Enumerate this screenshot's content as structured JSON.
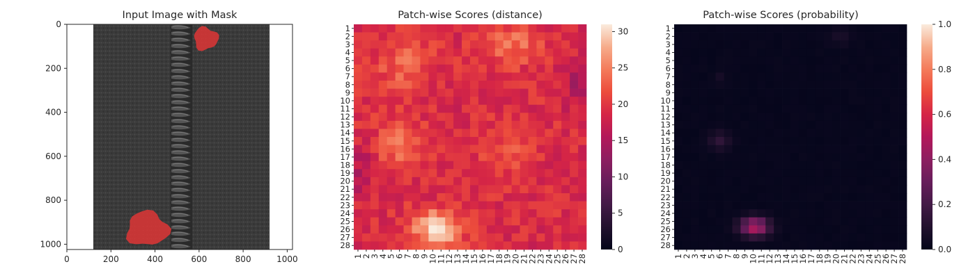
{
  "chart_data": [
    {
      "type": "image",
      "title": "Input Image with Mask",
      "xlim": [
        0,
        1024
      ],
      "ylim": [
        1024,
        0
      ],
      "xticks": [
        0,
        200,
        400,
        600,
        800,
        1000
      ],
      "yticks": [
        0,
        200,
        400,
        600,
        800,
        1000
      ],
      "image": {
        "extent_x": [
          120,
          920
        ],
        "zipper_x": [
          470,
          570
        ],
        "mask_regions": [
          {
            "name": "defect-top",
            "cx": 630,
            "cy": 65,
            "rx": 55,
            "ry": 52
          },
          {
            "name": "defect-bottom",
            "cx": 365,
            "cy": 930,
            "rx": 95,
            "ry": 78
          }
        ],
        "colors": {
          "fabric": "#3a3a3a",
          "zipper": "#2b2b2b",
          "mask": "#d93535"
        }
      }
    },
    {
      "type": "heatmap",
      "title": "Patch-wise Scores (distance)",
      "rows": 28,
      "cols": 28,
      "tick_labels": [
        "1",
        "2",
        "3",
        "4",
        "5",
        "6",
        "7",
        "8",
        "9",
        "10",
        "11",
        "12",
        "13",
        "14",
        "15",
        "16",
        "17",
        "18",
        "19",
        "20",
        "21",
        "22",
        "23",
        "24",
        "25",
        "26",
        "27",
        "28"
      ],
      "colorbar": {
        "vmin": 0,
        "vmax": 31,
        "ticks": [
          "0",
          "5",
          "10",
          "15",
          "20",
          "25",
          "30"
        ],
        "tick_values": [
          0,
          5,
          10,
          15,
          20,
          25,
          30
        ]
      },
      "base_value": 19,
      "hotspots": [
        {
          "row": 26,
          "col": 10.5,
          "sr": 1.6,
          "sc": 2.0,
          "amp": 12
        },
        {
          "row": 15.5,
          "col": 6,
          "sr": 2.0,
          "sc": 2.0,
          "amp": 5
        },
        {
          "row": 5.5,
          "col": 6.5,
          "sr": 2.5,
          "sc": 2.5,
          "amp": 4
        },
        {
          "row": 3,
          "col": 19.5,
          "sr": 1.8,
          "sc": 2.5,
          "amp": 5
        },
        {
          "row": 16,
          "col": 19,
          "sr": 2.0,
          "sc": 2.5,
          "amp": 3
        }
      ],
      "coldspots": [
        {
          "row": 8,
          "col": 27.5,
          "sr": 2.0,
          "sc": 1.0,
          "amp": 5
        },
        {
          "row": 19,
          "col": 1.5,
          "sr": 2.0,
          "sc": 1.0,
          "amp": 4
        }
      ]
    },
    {
      "type": "heatmap",
      "title": "Patch-wise Scores (probability)",
      "rows": 28,
      "cols": 28,
      "tick_labels": [
        "1",
        "2",
        "3",
        "4",
        "5",
        "6",
        "7",
        "8",
        "9",
        "10",
        "11",
        "12",
        "13",
        "14",
        "15",
        "16",
        "17",
        "18",
        "19",
        "20",
        "21",
        "22",
        "23",
        "24",
        "25",
        "26",
        "27",
        "28"
      ],
      "colorbar": {
        "vmin": 0,
        "vmax": 1,
        "ticks": [
          "0.0",
          "0.2",
          "0.4",
          "0.6",
          "0.8",
          "1.0"
        ],
        "tick_values": [
          0,
          0.2,
          0.4,
          0.6,
          0.8,
          1.0
        ]
      },
      "base_value": 0.01,
      "hotspots": [
        {
          "row": 25.7,
          "col": 10.2,
          "sr": 0.8,
          "sc": 1.2,
          "amp": 0.48
        },
        {
          "row": 15,
          "col": 6,
          "sr": 0.8,
          "sc": 0.9,
          "amp": 0.12
        },
        {
          "row": 2,
          "col": 20.5,
          "sr": 0.8,
          "sc": 1.0,
          "amp": 0.05
        },
        {
          "row": 7,
          "col": 6,
          "sr": 0.6,
          "sc": 0.6,
          "amp": 0.04
        }
      ],
      "coldspots": []
    }
  ]
}
